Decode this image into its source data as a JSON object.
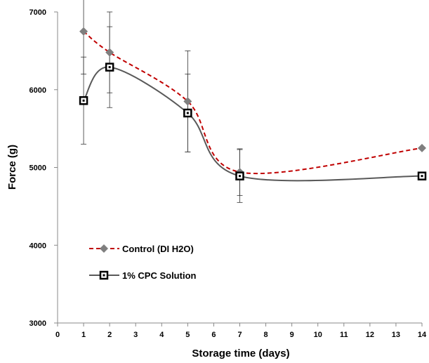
{
  "chart_data": {
    "type": "line",
    "title": "",
    "xlabel": "Storage time (days)",
    "ylabel": "Force (g)",
    "xlim": [
      0,
      14
    ],
    "ylim": [
      3000,
      7000
    ],
    "xticks": [
      0,
      1,
      2,
      3,
      4,
      5,
      6,
      7,
      8,
      9,
      10,
      11,
      12,
      13,
      14
    ],
    "yticks": [
      3000,
      4000,
      5000,
      6000,
      7000
    ],
    "grid": false,
    "legend_position": "lower-left",
    "series": [
      {
        "name": "Control (DI H2O)",
        "color": "#c00000",
        "marker_color": "#7f7f7f",
        "line_style": "dashed",
        "marker": "diamond",
        "x": [
          1,
          2,
          5,
          7,
          14
        ],
        "y": [
          6750,
          6480,
          5850,
          4940,
          5250
        ],
        "err": [
          550,
          520,
          650,
          300,
          0
        ]
      },
      {
        "name": "1% CPC Solution",
        "color": "#595959",
        "marker_color": "#000000",
        "line_style": "solid",
        "marker": "square",
        "x": [
          1,
          2,
          5,
          7,
          14
        ],
        "y": [
          5860,
          6290,
          5700,
          4890,
          4890
        ],
        "err": [
          560,
          520,
          500,
          340,
          0
        ]
      }
    ]
  }
}
